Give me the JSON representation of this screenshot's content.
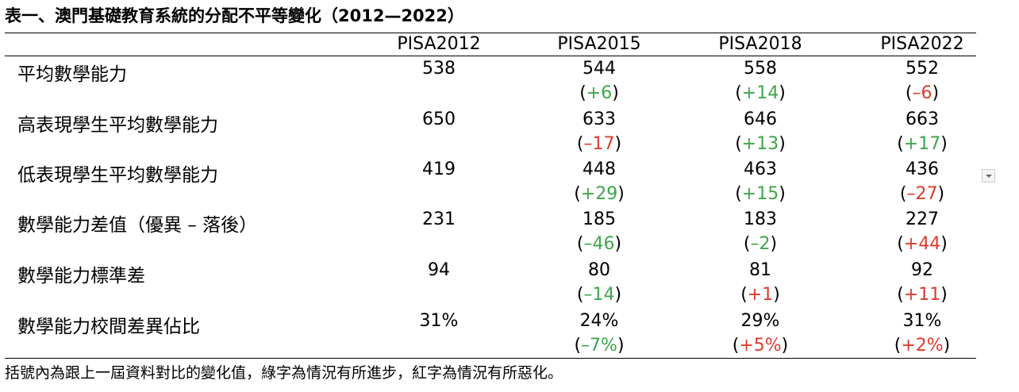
{
  "title": "表一、澳門基礎教育系統的分配不平等變化（2012—2022）",
  "brackets": [
    "(",
    ")"
  ],
  "table": {
    "columns": [
      "PISA2012",
      "PISA2015",
      "PISA2018",
      "PISA2022"
    ],
    "rows": [
      {
        "label": "平均數學能力",
        "cells": [
          {
            "value": "538"
          },
          {
            "value": "544",
            "change": "+6",
            "trend": "good"
          },
          {
            "value": "558",
            "change": "+14",
            "trend": "good"
          },
          {
            "value": "552",
            "change": "–6",
            "trend": "bad"
          }
        ]
      },
      {
        "label": "高表現學生平均數學能力",
        "cells": [
          {
            "value": "650"
          },
          {
            "value": "633",
            "change": "–17",
            "trend": "bad"
          },
          {
            "value": "646",
            "change": "+13",
            "trend": "good"
          },
          {
            "value": "663",
            "change": "+17",
            "trend": "good"
          }
        ]
      },
      {
        "label": "低表現學生平均數學能力",
        "cells": [
          {
            "value": "419"
          },
          {
            "value": "448",
            "change": "+29",
            "trend": "good"
          },
          {
            "value": "463",
            "change": "+15",
            "trend": "good"
          },
          {
            "value": "436",
            "change": "–27",
            "trend": "bad"
          }
        ]
      },
      {
        "label": "數學能力差值（優異 – 落後）",
        "cells": [
          {
            "value": "231"
          },
          {
            "value": "185",
            "change": "–46",
            "trend": "good"
          },
          {
            "value": "183",
            "change": "–2",
            "trend": "good"
          },
          {
            "value": "227",
            "change": "+44",
            "trend": "bad"
          }
        ]
      },
      {
        "label": "數學能力標準差",
        "cells": [
          {
            "value": "94"
          },
          {
            "value": "80",
            "change": "–14",
            "trend": "good"
          },
          {
            "value": "81",
            "change": "+1",
            "trend": "bad"
          },
          {
            "value": "92",
            "change": "+11",
            "trend": "bad"
          }
        ]
      },
      {
        "label": "數學能力校間差異佔比",
        "cells": [
          {
            "value": "31%"
          },
          {
            "value": "24%",
            "change": "–7%",
            "trend": "good"
          },
          {
            "value": "29%",
            "change": "+5%",
            "trend": "bad"
          },
          {
            "value": "31%",
            "change": "+2%",
            "trend": "bad"
          }
        ]
      }
    ]
  },
  "note": "括號內為跟上一屆資料對比的變化值，綠字為情況有所進步，紅字為情況有所惡化。"
}
